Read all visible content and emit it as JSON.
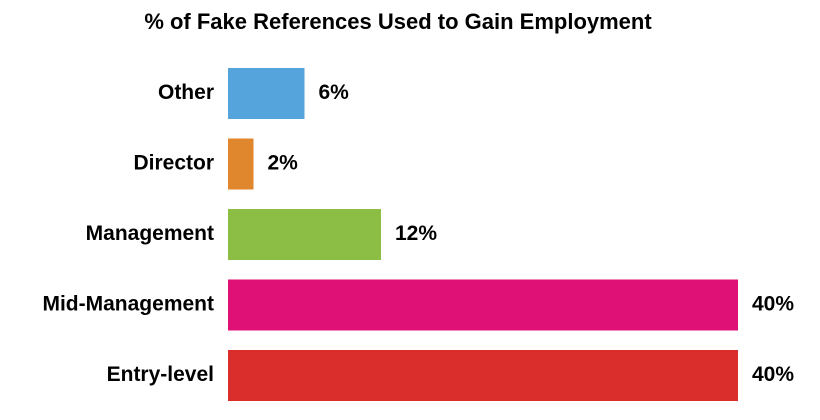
{
  "chart_data": {
    "type": "bar",
    "orientation": "horizontal",
    "title": "% of Fake References Used to Gain Employment",
    "categories": [
      "Other",
      "Director",
      "Management",
      "Mid-Management",
      "Entry-level"
    ],
    "values": [
      6,
      2,
      12,
      40,
      40
    ],
    "value_labels": [
      "6%",
      "2%",
      "12%",
      "40%",
      "40%"
    ],
    "colors": [
      "#55a4dc",
      "#e0862d",
      "#8cbd45",
      "#df1176",
      "#d92e2c"
    ],
    "xlim": [
      0,
      40
    ],
    "grid": false,
    "legend": "none"
  }
}
